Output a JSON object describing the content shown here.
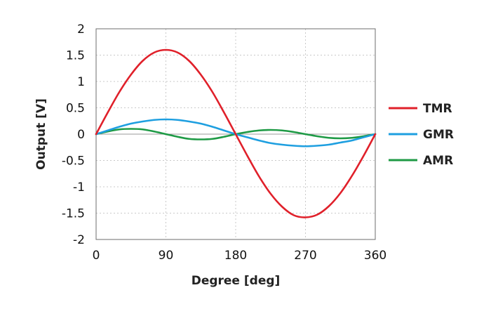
{
  "chart_data": {
    "type": "line",
    "title": "",
    "xlabel": "Degree [deg]",
    "ylabel": "Output [V]",
    "xlim": [
      0,
      360
    ],
    "ylim": [
      -2,
      2
    ],
    "x_ticks": [
      0,
      90,
      180,
      270,
      360
    ],
    "y_ticks": [
      -2,
      -1.5,
      -1,
      -0.5,
      0,
      0.5,
      1,
      1.5,
      2
    ],
    "x_tick_labels": [
      "0",
      "90",
      "180",
      "270",
      "360"
    ],
    "y_tick_labels": [
      "-2",
      "-1.5",
      "-1",
      "-0.5",
      "0",
      "0.5",
      "1",
      "1.5",
      "2"
    ],
    "grid": true,
    "legend_position": "right",
    "x": [
      0,
      15,
      30,
      45,
      60,
      75,
      90,
      105,
      120,
      135,
      150,
      165,
      180,
      195,
      210,
      225,
      240,
      255,
      270,
      285,
      300,
      315,
      330,
      345,
      360
    ],
    "series": [
      {
        "name": "TMR",
        "color": "#e0202a",
        "values": [
          0,
          0.41,
          0.8,
          1.13,
          1.39,
          1.55,
          1.6,
          1.55,
          1.39,
          1.13,
          0.8,
          0.41,
          0,
          -0.41,
          -0.8,
          -1.13,
          -1.38,
          -1.54,
          -1.58,
          -1.53,
          -1.37,
          -1.12,
          -0.79,
          -0.41,
          0
        ]
      },
      {
        "name": "GMR",
        "color": "#1e9fe0",
        "values": [
          0,
          0.07,
          0.14,
          0.2,
          0.24,
          0.27,
          0.28,
          0.27,
          0.24,
          0.2,
          0.14,
          0.07,
          0,
          -0.06,
          -0.12,
          -0.17,
          -0.2,
          -0.22,
          -0.23,
          -0.22,
          -0.2,
          -0.16,
          -0.12,
          -0.06,
          0
        ]
      },
      {
        "name": "AMR",
        "color": "#1e9a45",
        "values": [
          0,
          0.05,
          0.09,
          0.1,
          0.09,
          0.05,
          0,
          -0.05,
          -0.09,
          -0.1,
          -0.09,
          -0.05,
          0,
          0.04,
          0.07,
          0.08,
          0.07,
          0.04,
          0,
          -0.04,
          -0.07,
          -0.08,
          -0.07,
          -0.04,
          0
        ]
      }
    ]
  }
}
